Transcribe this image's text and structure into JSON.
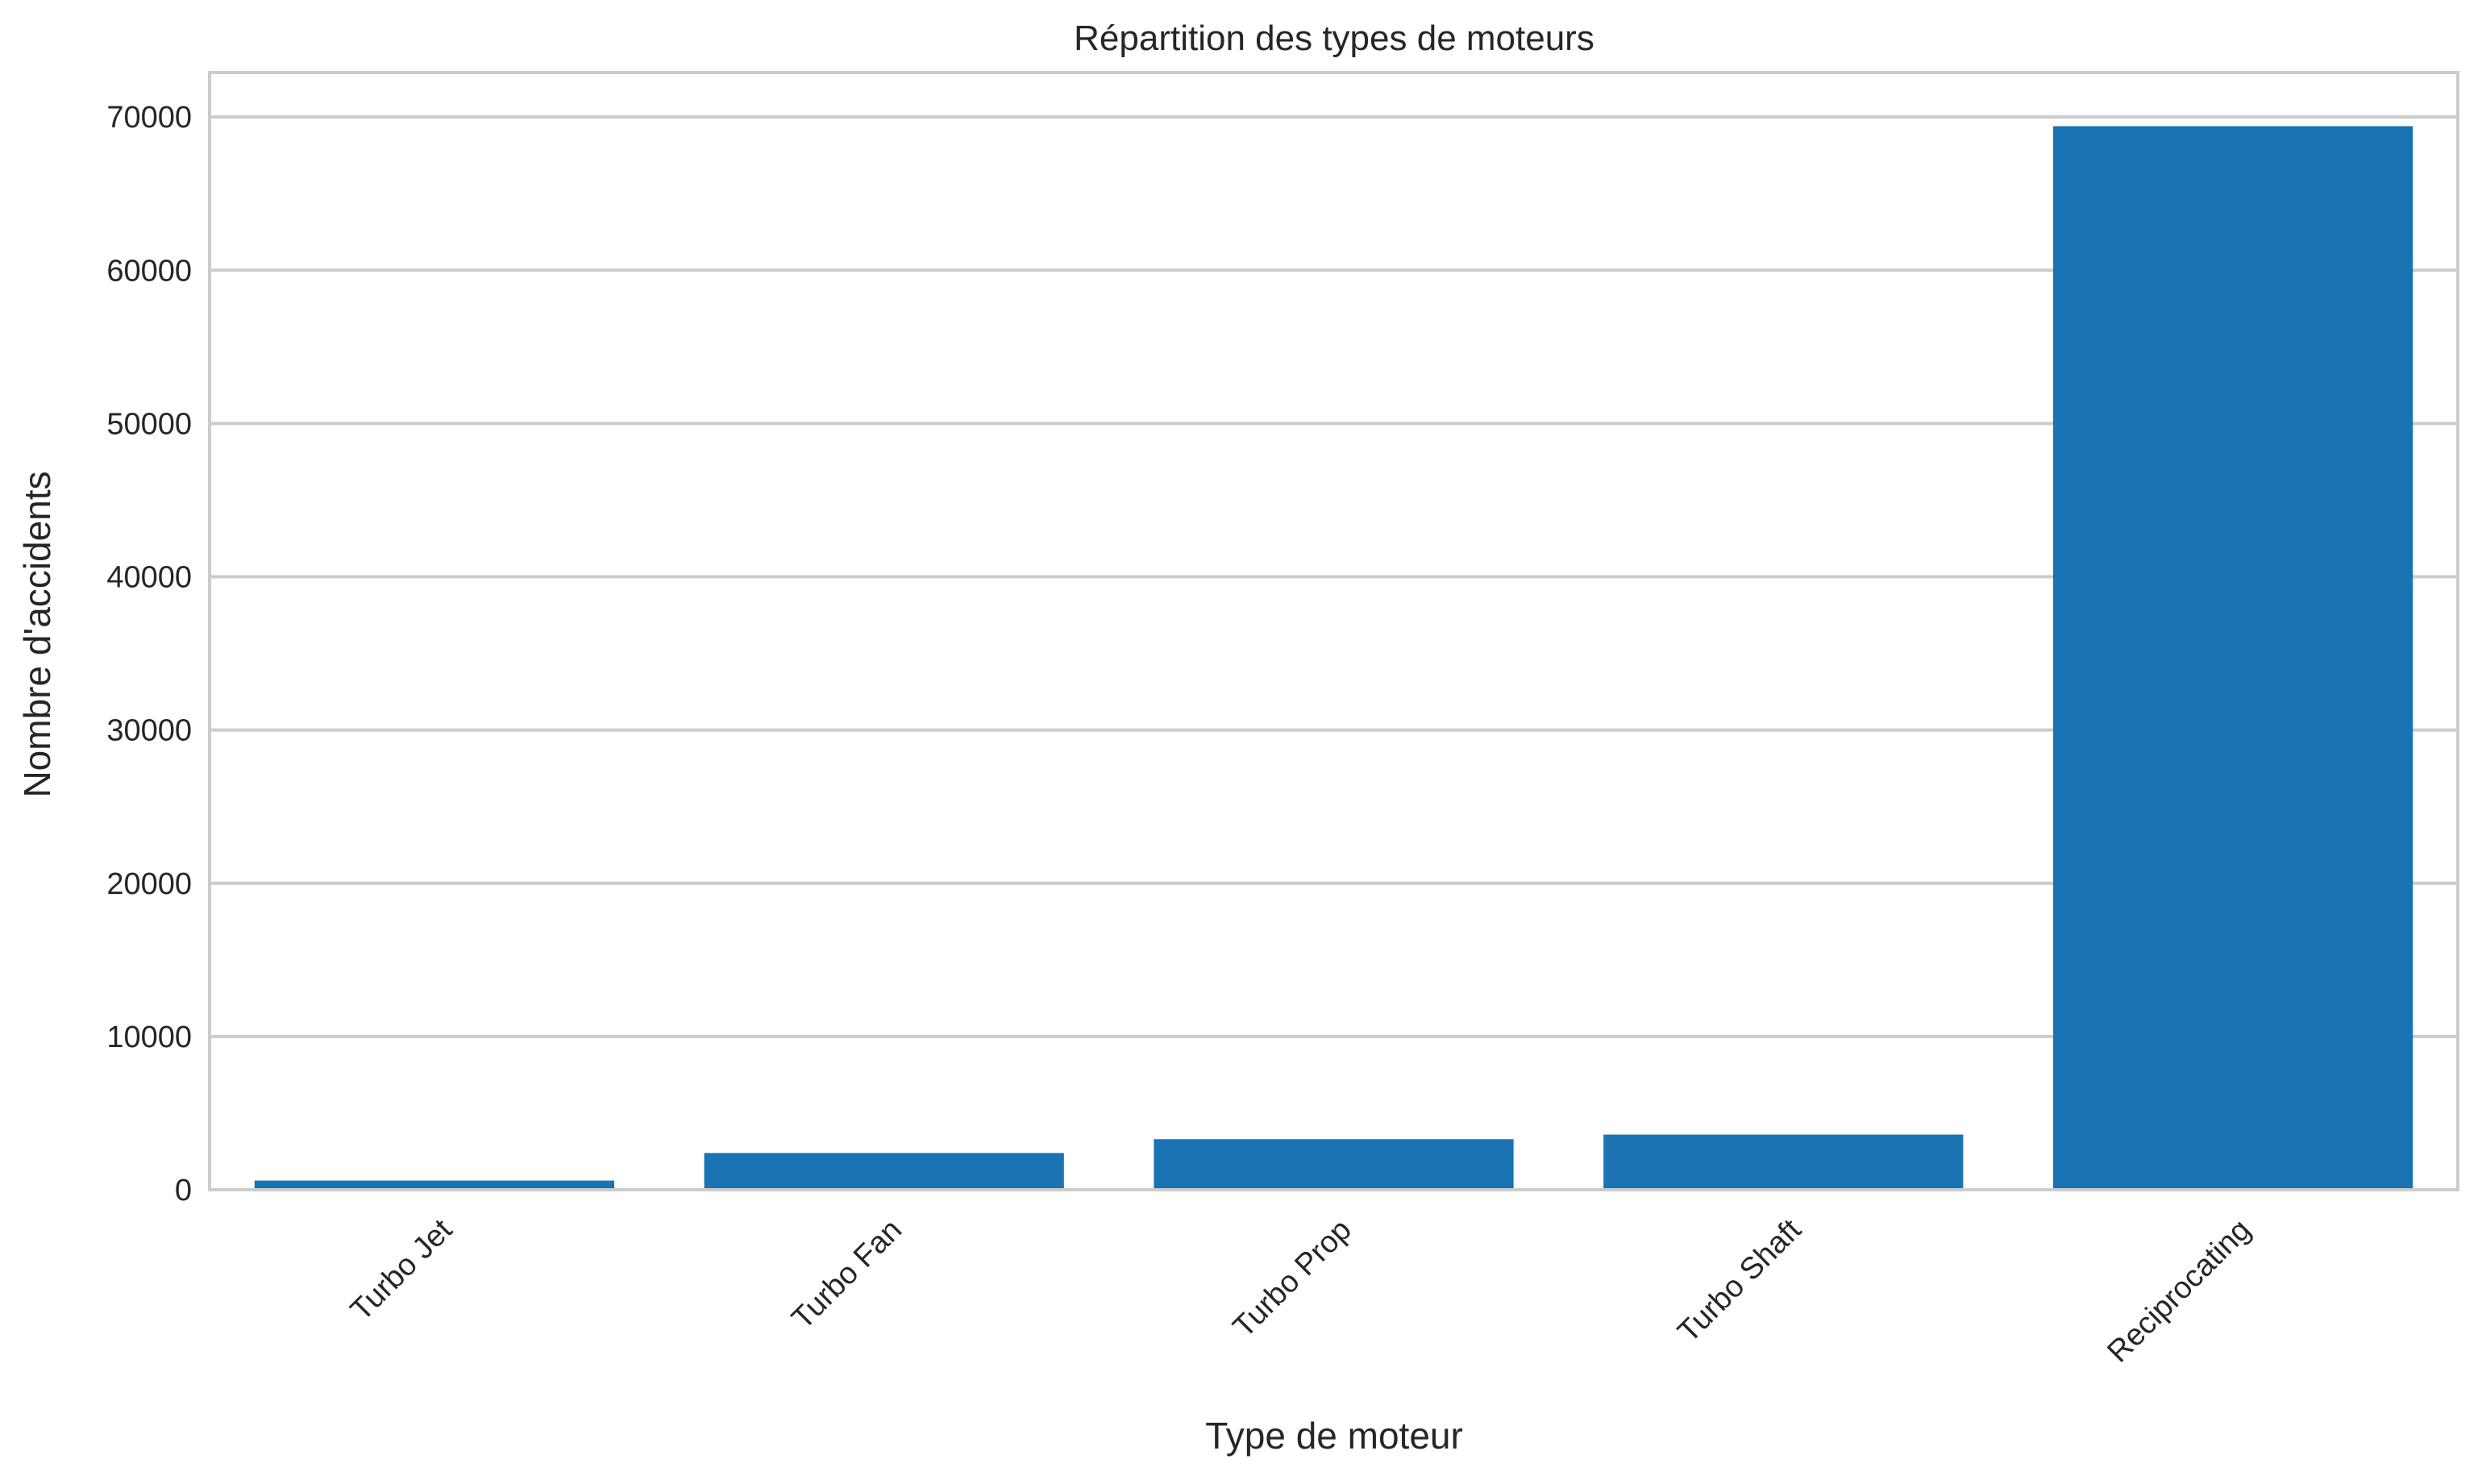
{
  "chart_data": {
    "type": "bar",
    "title": "Répartition des types de moteurs",
    "xlabel": "Type de moteur",
    "ylabel": "Nombre d'accidents",
    "categories": [
      "Turbo Jet",
      "Turbo Fan",
      "Turbo Prop",
      "Turbo Shaft",
      "Reciprocating"
    ],
    "values": [
      600,
      2400,
      3300,
      3600,
      69400
    ],
    "ylim": [
      0,
      72900
    ],
    "yticks": [
      0,
      10000,
      20000,
      30000,
      40000,
      50000,
      60000,
      70000
    ],
    "xtick_rotation_deg": -45,
    "grid": "horizontal",
    "bar_color": "#1a73b3",
    "grid_color": "#cccccc",
    "frame_color": "#cccccc",
    "text_color": "#262626"
  }
}
